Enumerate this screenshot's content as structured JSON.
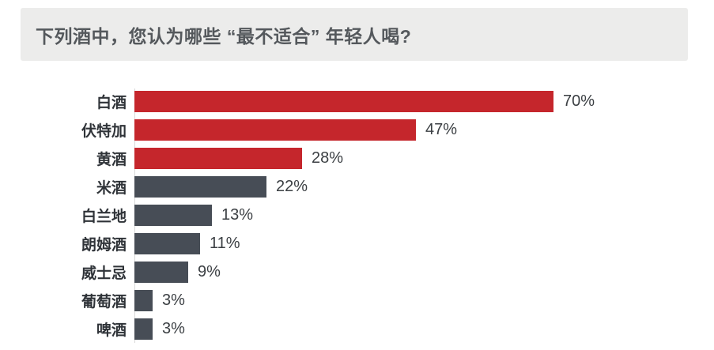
{
  "header": {
    "title": "下列酒中，您认为哪些 “最不适合” 年轻人喝?"
  },
  "chart_data": {
    "type": "bar",
    "orientation": "horizontal",
    "title": "下列酒中，您认为哪些 “最不适合” 年轻人喝?",
    "categories": [
      "白酒",
      "伏特加",
      "黄酒",
      "米酒",
      "白兰地",
      "朗姆酒",
      "威士忌",
      "葡萄酒",
      "啤酒"
    ],
    "values": [
      70,
      47,
      28,
      22,
      13,
      11,
      9,
      3,
      3
    ],
    "value_labels": [
      "70%",
      "47%",
      "28%",
      "22%",
      "13%",
      "11%",
      "9%",
      "3%",
      "3%"
    ],
    "unit": "%",
    "xlim": [
      0,
      70
    ],
    "grid": false,
    "legend": "none",
    "highlight_color": "#C5262C",
    "default_color": "#474D56",
    "bar_colors": [
      "#C5262C",
      "#C5262C",
      "#C5262C",
      "#474D56",
      "#474D56",
      "#474D56",
      "#474D56",
      "#474D56",
      "#474D56"
    ],
    "banner_background": "#ECECEB",
    "title_text_color": "#54585C",
    "label_text_color": "#2F3338",
    "value_text_color": "#3B3F43",
    "axis_line_color": "#D8D8D8"
  }
}
